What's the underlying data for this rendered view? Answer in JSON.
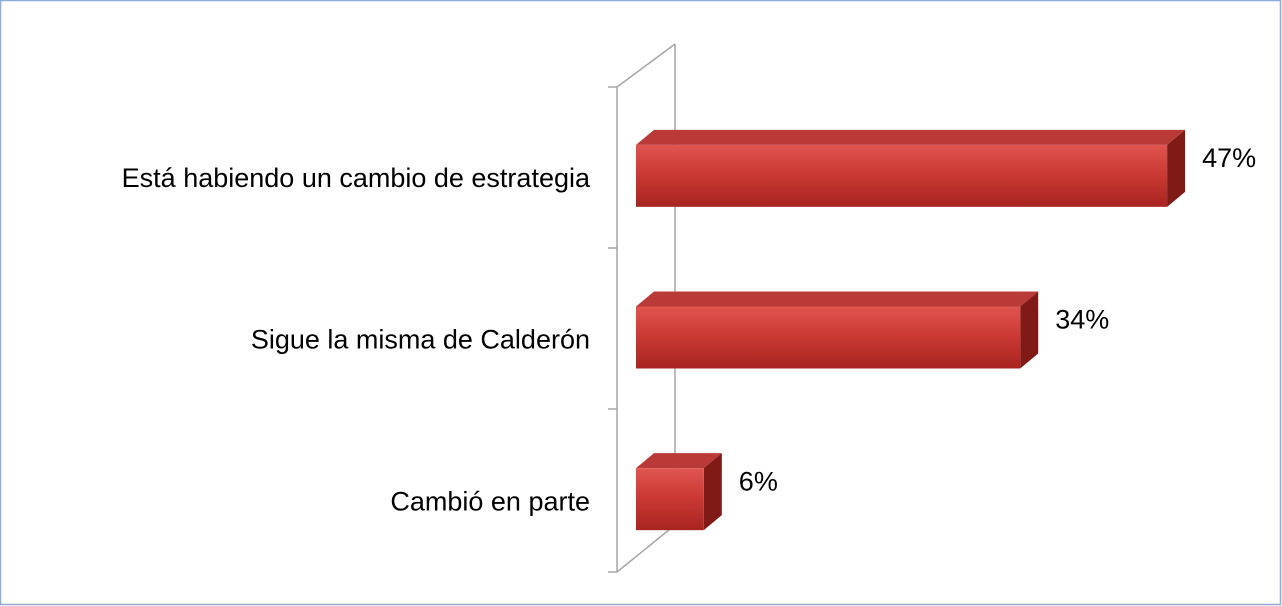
{
  "chart_data": {
    "type": "bar",
    "orientation": "horizontal",
    "categories": [
      "Está habiendo un cambio de estrategia",
      "Sigue la misma de Calderón",
      "Cambió en parte"
    ],
    "values": [
      47,
      34,
      6
    ],
    "value_labels": [
      "47%",
      "34%",
      "6%"
    ],
    "color": "#c9302c",
    "xlim": [
      0,
      50
    ]
  }
}
